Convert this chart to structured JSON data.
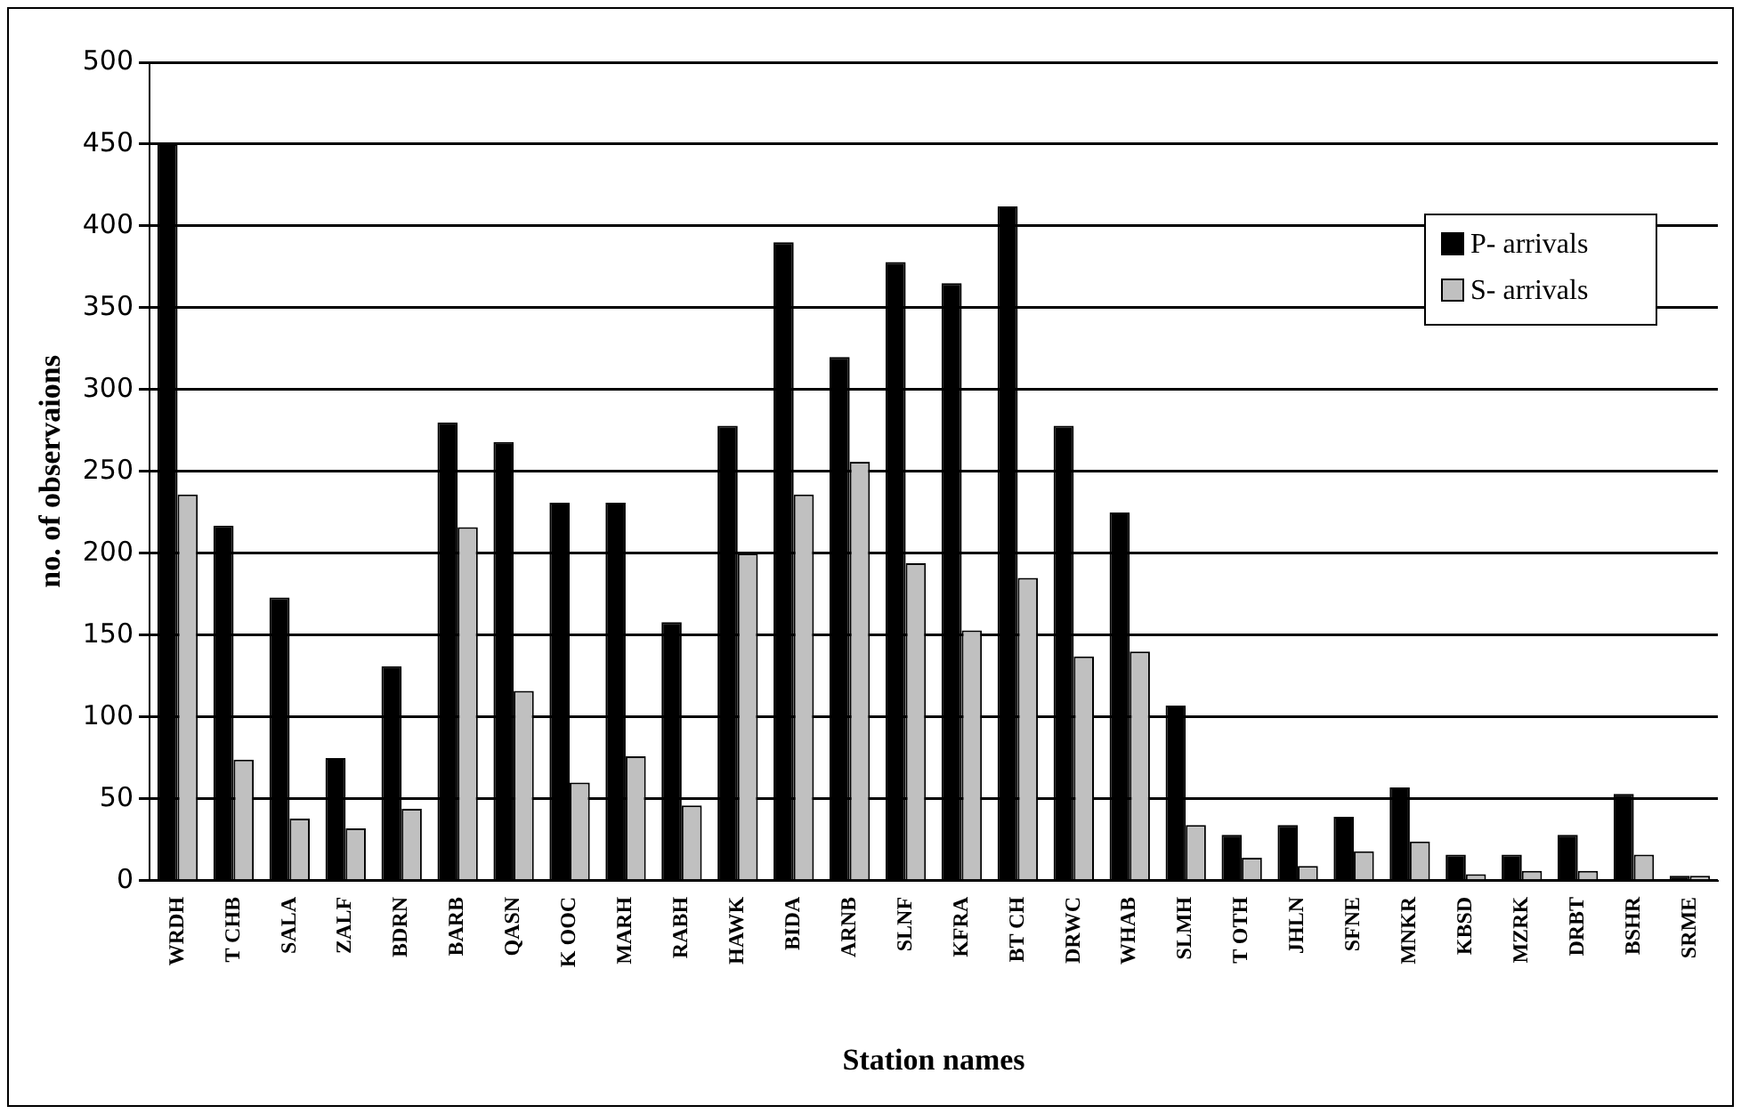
{
  "chart_data": {
    "type": "bar",
    "xlabel": "Station names",
    "ylabel": "no. of observaions",
    "categories": [
      "WRDH",
      "T CHB",
      "SALA",
      "ZALF",
      "BDRN",
      "BARB",
      "QASN",
      "K OOC",
      "MARH",
      "RABH",
      "HAWK",
      "BIDA",
      "ARNB",
      "SLNF",
      "KFRA",
      "BT CH",
      "DRWC",
      "WHAB",
      "SLMH",
      "T OTH",
      "JHLN",
      "SFNE",
      "MNKR",
      "KBSD",
      "MZRK",
      "DRBT",
      "BSHR",
      "SRME"
    ],
    "series": [
      {
        "name": "P- arrivals",
        "color": "#000000",
        "values": [
          450,
          217,
          173,
          75,
          131,
          280,
          268,
          231,
          231,
          158,
          278,
          390,
          320,
          378,
          365,
          412,
          278,
          225,
          107,
          28,
          34,
          39,
          57,
          16,
          16,
          28,
          53,
          3
        ]
      },
      {
        "name": "S- arrivals",
        "color": "#c0c0c0",
        "values": [
          236,
          74,
          38,
          32,
          44,
          216,
          116,
          60,
          76,
          46,
          200,
          236,
          256,
          194,
          153,
          185,
          137,
          140,
          34,
          14,
          9,
          18,
          24,
          4,
          6,
          6,
          16,
          3
        ]
      }
    ],
    "ylim": [
      0,
      500
    ],
    "yticks": [
      0,
      50,
      100,
      150,
      200,
      250,
      300,
      350,
      400,
      450,
      500
    ],
    "grid": "y",
    "legend": "top right"
  }
}
